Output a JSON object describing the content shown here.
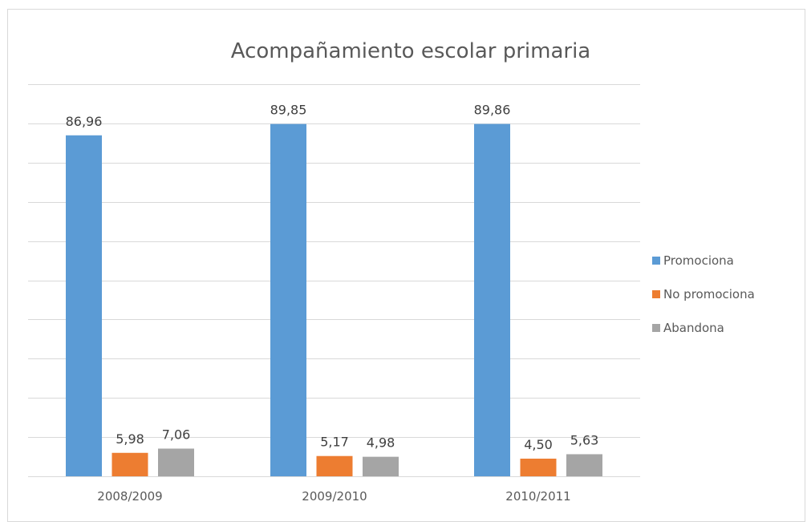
{
  "chart_data": {
    "type": "bar",
    "title": "Acompañamiento escolar primaria",
    "xlabel": "",
    "ylabel": "",
    "categories": [
      "2008/2009",
      "2009/2010",
      "2010/2011"
    ],
    "series": [
      {
        "name": "Promociona",
        "color": "#5b9bd5",
        "values": [
          86.96,
          89.85,
          89.86
        ],
        "labels": [
          "86,96",
          "89,85",
          "89,86"
        ]
      },
      {
        "name": "No promociona",
        "color": "#ed7d31",
        "values": [
          5.98,
          5.17,
          4.5
        ],
        "labels": [
          "5,98",
          "5,17",
          "4,50"
        ]
      },
      {
        "name": "Abandona",
        "color": "#a5a5a5",
        "values": [
          7.06,
          4.98,
          5.63
        ],
        "labels": [
          "7,06",
          "4,98",
          "5,63"
        ]
      }
    ],
    "ylim": [
      0,
      100
    ],
    "grid": true,
    "legend_position": "right"
  }
}
